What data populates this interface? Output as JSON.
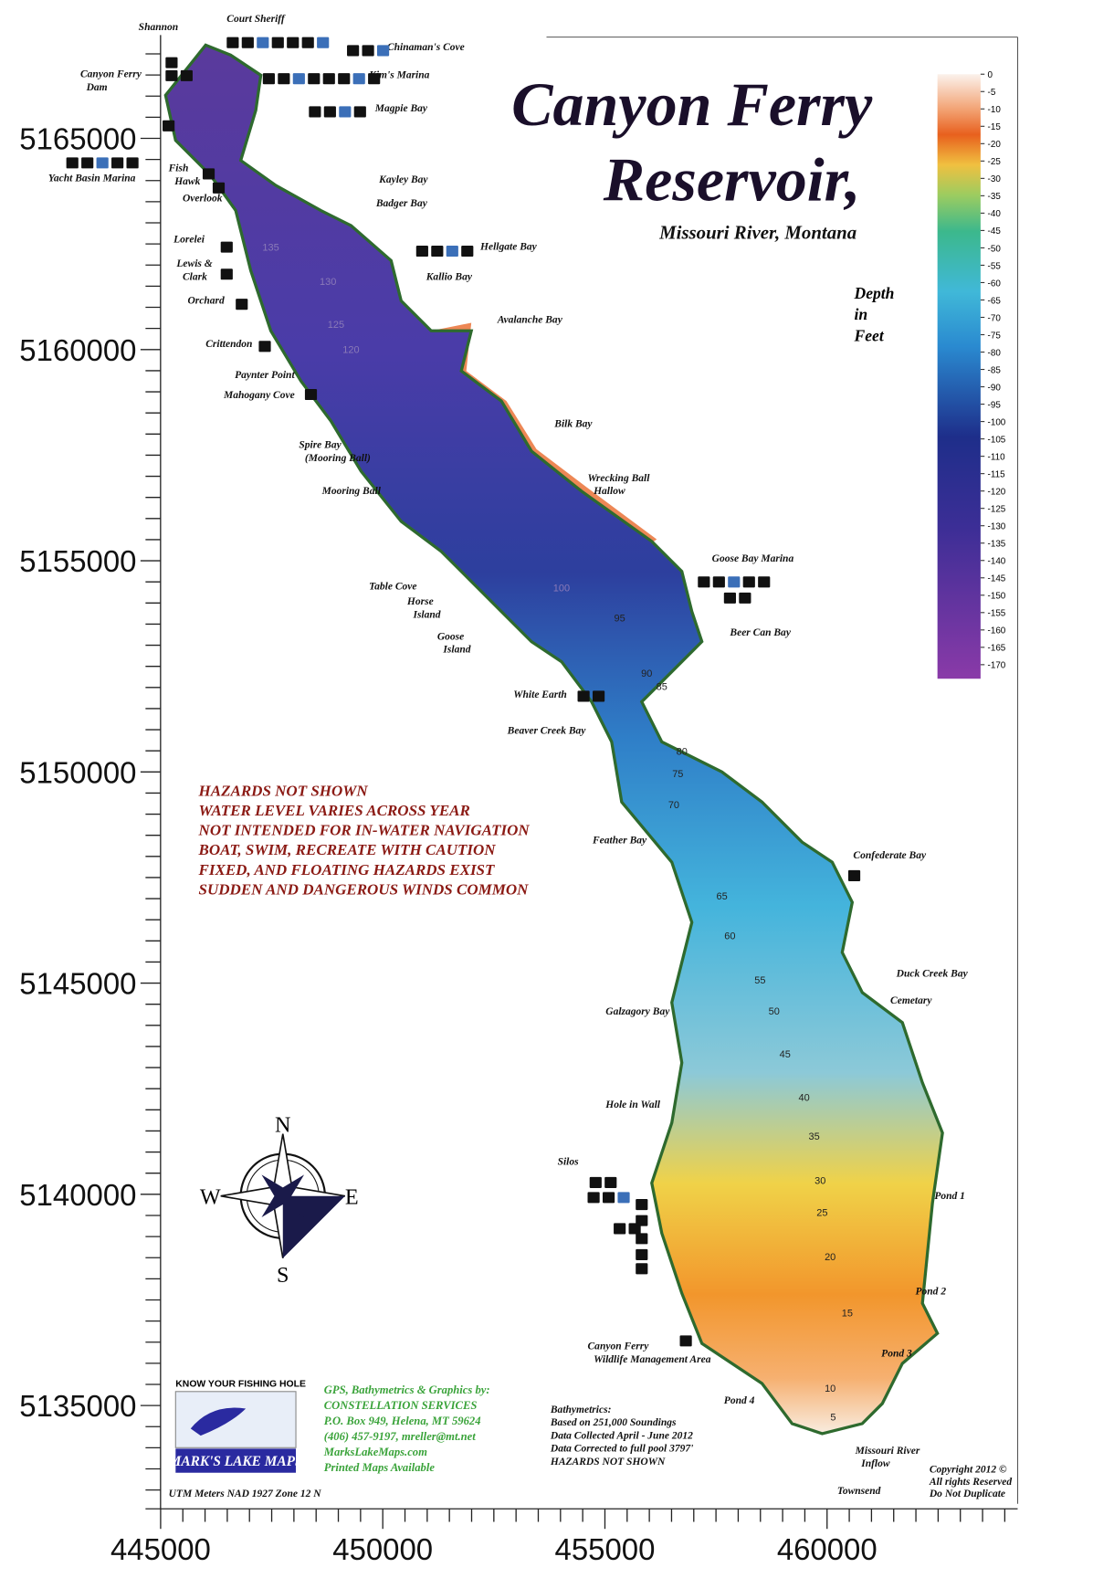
{
  "title": [
    "Canyon Ferry",
    "Reservoir,"
  ],
  "subtitle": "Missouri River, Montana",
  "legend": {
    "title": [
      "Depth",
      "in",
      "Feet"
    ],
    "ticks": [
      0,
      -5,
      -10,
      -15,
      -20,
      -25,
      -30,
      -35,
      -40,
      -45,
      -50,
      -55,
      -60,
      -65,
      -70,
      -75,
      -80,
      -85,
      -90,
      -95,
      -100,
      -105,
      -110,
      -115,
      -120,
      -125,
      -130,
      -135,
      -140,
      -145,
      -150,
      -155,
      -160,
      -165,
      -170
    ]
  },
  "axes": {
    "x": {
      "lim": [
        444660,
        464290
      ],
      "ticks": [
        445000,
        450000,
        455000,
        460000
      ]
    },
    "y": {
      "lim": [
        5132910,
        5167445
      ],
      "ticks": [
        5135000,
        5140000,
        5145000,
        5150000,
        5155000,
        5160000,
        5165000
      ]
    }
  },
  "projection": "UTM Meters NAD 1927  Zone 12 N",
  "compass": [
    "N",
    "E",
    "S",
    "W"
  ],
  "places": [
    [
      "Shannon"
    ],
    [
      "Court Sheriff"
    ],
    [
      "Chinaman's Cove"
    ],
    [
      "Canyon Ferry",
      "Dam"
    ],
    [
      "Kim's Marina"
    ],
    [
      "Magpie Bay"
    ],
    [
      "Yacht Basin Marina"
    ],
    [
      "Fish",
      "Hawk"
    ],
    [
      "Overlook"
    ],
    [
      "Kayley Bay"
    ],
    [
      "Badger Bay"
    ],
    [
      "Lorelei"
    ],
    [
      "Hellgate Bay"
    ],
    [
      "Lewis &",
      "Clark"
    ],
    [
      "Kallio Bay"
    ],
    [
      "Orchard"
    ],
    [
      "Avalanche Bay"
    ],
    [
      "Crittendon"
    ],
    [
      "Paynter Point"
    ],
    [
      "Mahogany Cove"
    ],
    [
      "Bilk Bay"
    ],
    [
      "Spire Bay",
      "(Mooring Ball)"
    ],
    [
      "Wrecking Ball",
      "Hallow"
    ],
    [
      "Mooring Ball"
    ],
    [
      "Goose Bay Marina"
    ],
    [
      "Table Cove"
    ],
    [
      "Horse",
      "Island"
    ],
    [
      "Beer Can Bay"
    ],
    [
      "Goose",
      "Island"
    ],
    [
      "White Earth"
    ],
    [
      "Beaver Creek Bay"
    ],
    [
      "Feather Bay"
    ],
    [
      "Confederate Bay"
    ],
    [
      "Duck Creek Bay"
    ],
    [
      "Cemetary"
    ],
    [
      "Galzagory Bay"
    ],
    [
      "Hole in Wall"
    ],
    [
      "Silos"
    ],
    [
      "Pond 1"
    ],
    [
      "Pond 2"
    ],
    [
      "Pond 3"
    ],
    [
      "Canyon Ferry",
      "Wildlife Management Area"
    ],
    [
      "Pond 4"
    ],
    [
      "Missouri River",
      "Inflow"
    ],
    [
      "Townsend"
    ]
  ],
  "contour_labels": [
    135,
    130,
    125,
    120,
    100,
    95,
    90,
    85,
    80,
    75,
    70,
    65,
    60,
    55,
    50,
    45,
    40,
    35,
    30,
    25,
    20,
    15,
    10,
    5
  ],
  "hazards": [
    "HAZARDS NOT SHOWN",
    "WATER LEVEL VARIES ACROSS YEAR",
    "NOT INTENDED FOR IN-WATER NAVIGATION",
    "BOAT, SWIM, RECREATE WITH CAUTION",
    "FIXED, AND FLOATING HAZARDS EXIST",
    "SUDDEN AND DANGEROUS WINDS COMMON"
  ],
  "credits": [
    "GPS, Bathymetrics & Graphics by:",
    "CONSTELLATION SERVICES",
    "P.O. Box 949, Helena, MT   59624",
    "(406) 457-9197,   mreller@mt.net",
    "MarksLakeMaps.com",
    "Printed Maps Available"
  ],
  "logo": [
    "KNOW YOUR FISHING HOLE",
    "MARK'S LAKE MAPS"
  ],
  "survey_notes": [
    "Bathymetrics:",
    "Based on 251,000 Soundings",
    "Data Collected April - June 2012",
    "Data Corrected to full pool 3797'",
    "HAZARDS NOT SHOWN"
  ],
  "copyright": [
    "Copyright 2012 ©",
    "All rights Reserved",
    "Do Not Duplicate"
  ]
}
